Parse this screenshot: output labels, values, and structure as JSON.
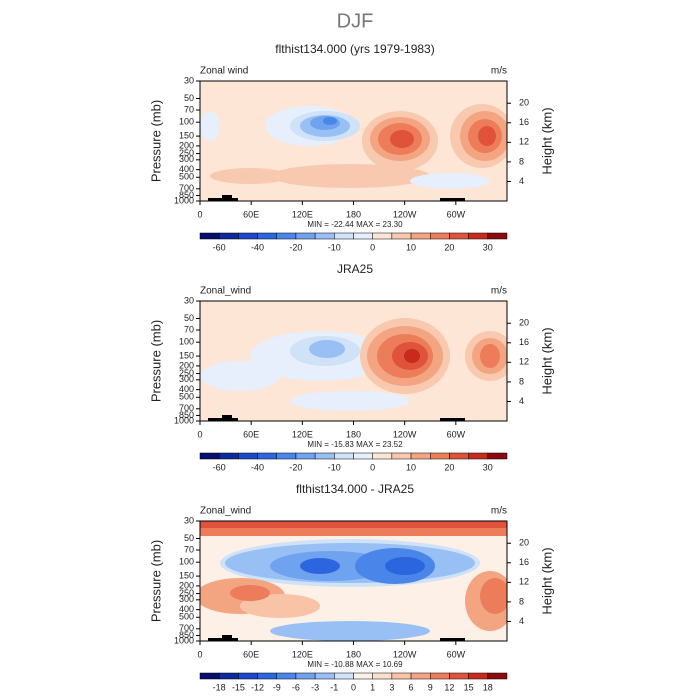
{
  "suptitle": "DJF",
  "chart_data": [
    {
      "type": "contour",
      "title": "flthist134.000 (yrs 1979-1983)",
      "variable": "Zonal wind",
      "units": "m/s",
      "ylabel": "Pressure (mb)",
      "y2label": "Height (km)",
      "stats": "MIN = -22.44   MAX =  23.30",
      "xlim": [
        0,
        360
      ],
      "xticks": [
        0,
        {
          "value": 60,
          "label": "60E"
        },
        {
          "value": 120,
          "label": "120E"
        },
        180,
        {
          "value": 240,
          "label": "120W"
        },
        {
          "value": 300,
          "label": "60W"
        }
      ],
      "ylim": [
        1000,
        30
      ],
      "log_y": true,
      "yticks": [
        30,
        50,
        70,
        100,
        150,
        200,
        250,
        300,
        400,
        500,
        700,
        850,
        1000
      ],
      "y2ticks": [
        4,
        8,
        12,
        16,
        20
      ],
      "colorbar": {
        "ticks": [
          -60,
          -40,
          -20,
          -10,
          0,
          10,
          20,
          30
        ],
        "tick_every": 2,
        "colors": [
          "#050f6e",
          "#0c2a9c",
          "#1a48c8",
          "#2c66de",
          "#4a86ea",
          "#6fa3ef",
          "#98c0f4",
          "#cfe2f8",
          "#e6effb",
          "#fde6d6",
          "#f8c9ae",
          "#f3a582",
          "#ec7c5a",
          "#e0533a",
          "#c82a1e",
          "#8b0a0a"
        ]
      }
    },
    {
      "type": "contour",
      "title": "JRA25",
      "variable": "Zonal_wind",
      "units": "m/s",
      "ylabel": "Pressure (mb)",
      "y2label": "Height (km)",
      "stats": "MIN = -15.83   MAX =  23.52",
      "xlim": [
        0,
        360
      ],
      "xticks": [
        0,
        {
          "value": 60,
          "label": "60E"
        },
        {
          "value": 120,
          "label": "120E"
        },
        180,
        {
          "value": 240,
          "label": "120W"
        },
        {
          "value": 300,
          "label": "60W"
        }
      ],
      "ylim": [
        1000,
        30
      ],
      "log_y": true,
      "yticks": [
        30,
        50,
        70,
        100,
        150,
        200,
        250,
        300,
        400,
        500,
        700,
        850,
        1000
      ],
      "y2ticks": [
        4,
        8,
        12,
        16,
        20
      ],
      "colorbar": {
        "ticks": [
          -60,
          -40,
          -20,
          -10,
          0,
          10,
          20,
          30
        ],
        "tick_every": 2,
        "colors": [
          "#050f6e",
          "#0c2a9c",
          "#1a48c8",
          "#2c66de",
          "#4a86ea",
          "#6fa3ef",
          "#98c0f4",
          "#cfe2f8",
          "#e6effb",
          "#fde6d6",
          "#f8c9ae",
          "#f3a582",
          "#ec7c5a",
          "#e0533a",
          "#c82a1e",
          "#8b0a0a"
        ]
      }
    },
    {
      "type": "contour",
      "title": "flthist134.000 - JRA25",
      "variable": "Zonal_wind",
      "units": "m/s",
      "ylabel": "Pressure (mb)",
      "y2label": "Height (km)",
      "stats": "MIN = -10.88   MAX =  10.69",
      "xlim": [
        0,
        360
      ],
      "xticks": [
        0,
        {
          "value": 60,
          "label": "60E"
        },
        {
          "value": 120,
          "label": "120E"
        },
        180,
        {
          "value": 240,
          "label": "120W"
        },
        {
          "value": 300,
          "label": "60W"
        }
      ],
      "ylim": [
        1000,
        30
      ],
      "log_y": true,
      "yticks": [
        30,
        50,
        70,
        100,
        150,
        200,
        250,
        300,
        400,
        500,
        700,
        850,
        1000
      ],
      "y2ticks": [
        4,
        8,
        12,
        16,
        20
      ],
      "colorbar": {
        "ticks": [
          -18,
          -15,
          -12,
          -9,
          -6,
          -3,
          -1,
          0,
          1,
          3,
          6,
          9,
          12,
          15,
          18
        ],
        "tick_every": 1,
        "colors": [
          "#050f6e",
          "#0c2a9c",
          "#1a48c8",
          "#2c66de",
          "#4a86ea",
          "#6fa3ef",
          "#98c0f4",
          "#cfe2f8",
          "#fdf0e6",
          "#fde0cc",
          "#f8c3a6",
          "#f3a582",
          "#ec7c5a",
          "#e0533a",
          "#c82a1e",
          "#8b0a0a"
        ]
      }
    }
  ]
}
